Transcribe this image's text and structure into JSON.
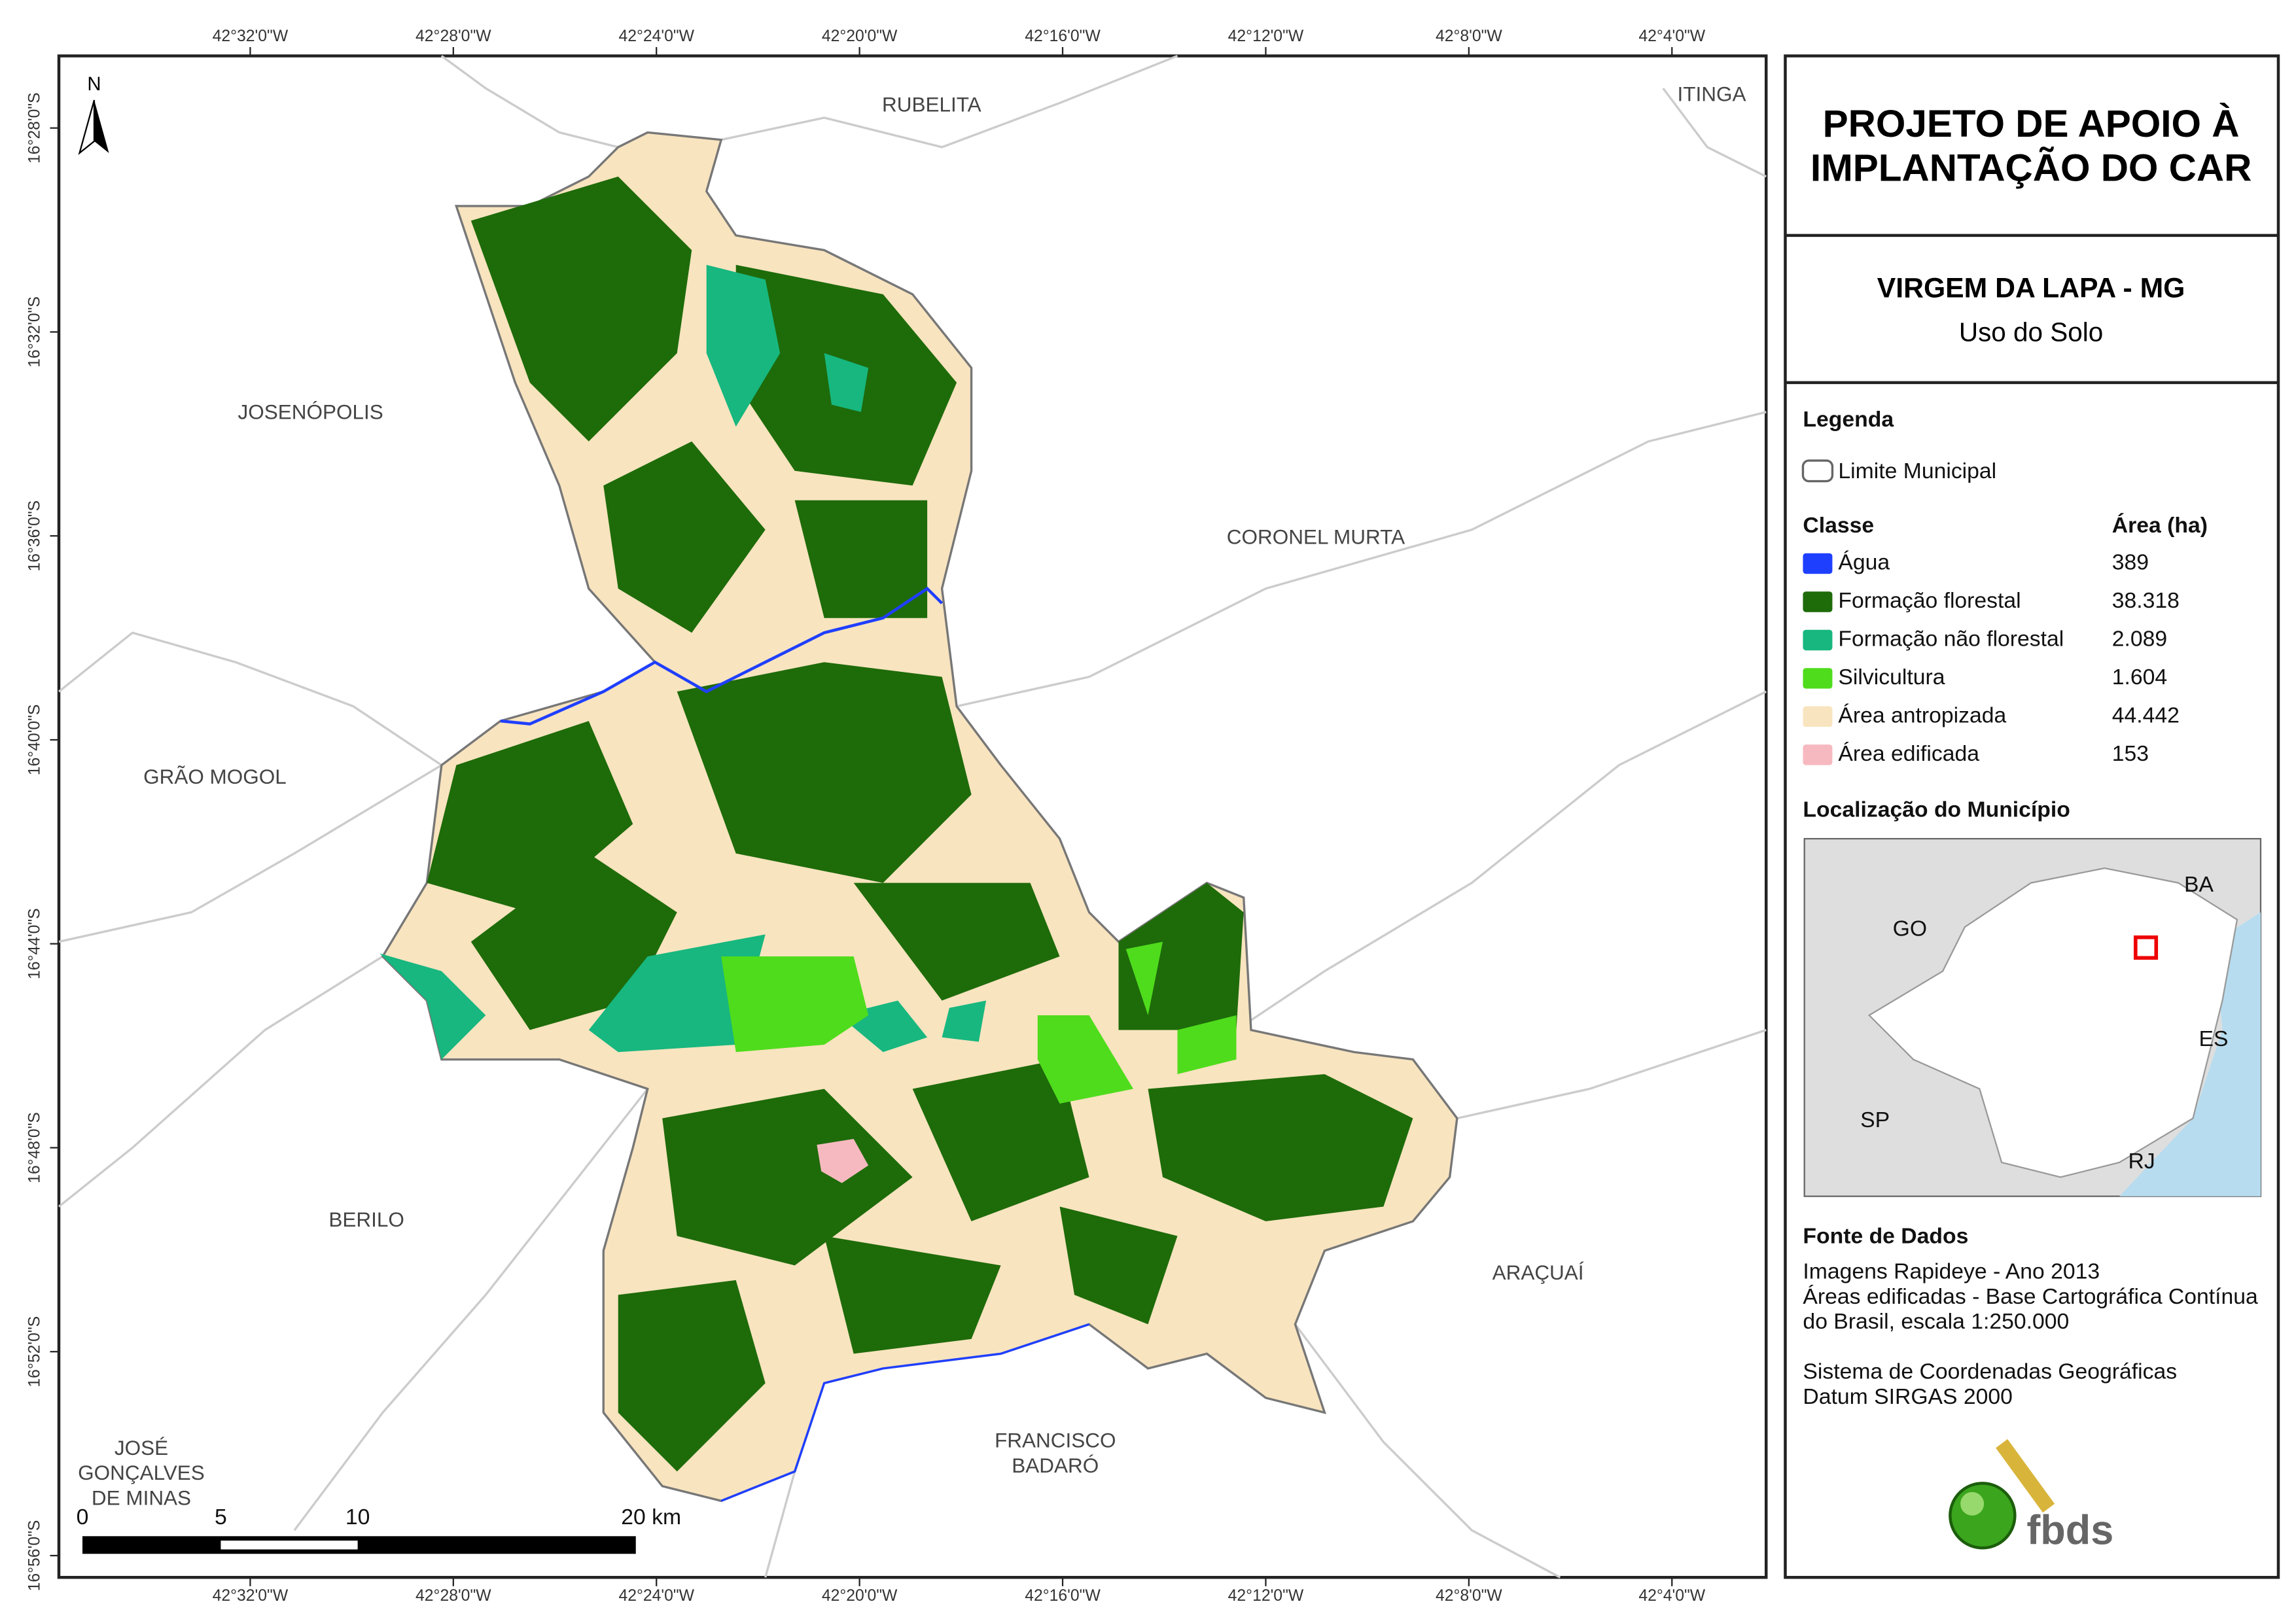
{
  "map": {
    "lon_labels": [
      "42°32'0\"W",
      "42°28'0\"W",
      "42°24'0\"W",
      "42°20'0\"W",
      "42°16'0\"W",
      "42°12'0\"W",
      "42°8'0\"W",
      "42°4'0\"W"
    ],
    "lat_labels": [
      "16°28'0\"S",
      "16°32'0\"S",
      "16°36'0\"S",
      "16°40'0\"S",
      "16°44'0\"S",
      "16°48'0\"S",
      "16°52'0\"S",
      "16°56'0\"S"
    ],
    "north": "N",
    "neighbors": [
      {
        "lines": [
          "RUBELITA"
        ]
      },
      {
        "lines": [
          "ITINGA"
        ]
      },
      {
        "lines": [
          "JOSENÓPOLIS"
        ]
      },
      {
        "lines": [
          "CORONEL MURTA"
        ]
      },
      {
        "lines": [
          "GRÃO MOGOL"
        ]
      },
      {
        "lines": [
          "BERILO"
        ]
      },
      {
        "lines": [
          "ARAÇUAÍ"
        ]
      },
      {
        "lines": [
          "FRANCISCO",
          "BADARÓ"
        ]
      },
      {
        "lines": [
          "JOSÉ",
          "GONÇALVES",
          "DE MINAS"
        ]
      }
    ],
    "scale_labels": [
      "0",
      "5",
      "10",
      "20 km"
    ]
  },
  "panel": {
    "title": [
      "PROJETO DE APOIO À",
      "IMPLANTAÇÃO DO CAR"
    ],
    "municipality": "VIRGEM DA LAPA - MG",
    "subtitle": "Uso do Solo",
    "legend_title": "Legenda",
    "boundary_label": "Limite Municipal",
    "class_header": "Classe",
    "area_header": "Área (ha)",
    "classes": [
      {
        "name": "Água",
        "area": "389",
        "color": "#1f3fff"
      },
      {
        "name": "Formação florestal",
        "area": "38.318",
        "color": "#1e6b0a"
      },
      {
        "name": "Formação não florestal",
        "area": "2.089",
        "color": "#17b77f"
      },
      {
        "name": "Silvicultura",
        "area": "1.604",
        "color": "#4fdc1c"
      },
      {
        "name": "Área antropizada",
        "area": "44.442",
        "color": "#f8e4bf"
      },
      {
        "name": "Área edificada",
        "area": "153",
        "color": "#f7b9c0"
      }
    ],
    "location_title": "Localização do Município",
    "location_labels": [
      "GO",
      "BA",
      "ES",
      "SP",
      "RJ"
    ],
    "source_title": "Fonte de Dados",
    "source_lines": [
      "Imagens Rapideye - Ano 2013",
      "Áreas edificadas - Base Cartográfica Contínua",
      "do Brasil, escala 1:250.000",
      "",
      "Sistema de Coordenadas Geográficas",
      "Datum SIRGAS 2000"
    ],
    "logo": "fbds"
  }
}
